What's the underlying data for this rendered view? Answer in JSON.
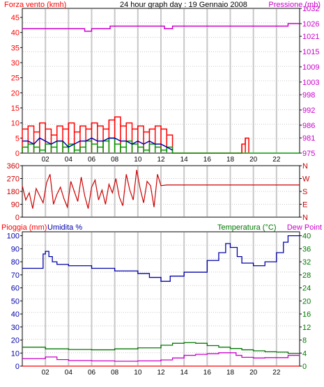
{
  "colors": {
    "wind": "#ff0000",
    "gust": "#ff0000",
    "wind_avg": "#0000aa",
    "gust_green": "#009900",
    "pressure": "#cc00cc",
    "direction": "#cc0000",
    "rain": "#ff0000",
    "humidity": "#0000aa",
    "temperature": "#007700",
    "dew_point": "#cc00cc",
    "grid": "#c8c8c8",
    "frame": "#000000"
  },
  "chart_data": [
    {
      "type": "line",
      "panel": "wind-pressure",
      "title": "24 hour graph day : 19 Gennaio 2008",
      "ylabel_left": "Forza vento (kmh)",
      "ylabel_right": "Pressione (mb)",
      "x_tick_labels": [
        "02",
        "04",
        "06",
        "08",
        "10",
        "12",
        "14",
        "16",
        "18",
        "20",
        "22"
      ],
      "y_ticks_left": [
        "0",
        "5",
        "10",
        "15",
        "20",
        "25",
        "30",
        "35",
        "40",
        "45"
      ],
      "y_ticks_right": [
        "975",
        "981",
        "986",
        "992",
        "998",
        "1003",
        "1009",
        "1015",
        "1021",
        "1026",
        "1032"
      ],
      "ylim_left": [
        0,
        48
      ],
      "ylim_right": [
        975,
        1032
      ],
      "xlim": [
        0,
        24
      ],
      "grid": true,
      "series": [
        {
          "key": "gust_red",
          "x": [
            0.0,
            0.5,
            1.0,
            1.5,
            2.0,
            2.5,
            3.0,
            3.5,
            4.0,
            4.5,
            5.0,
            5.5,
            6.0,
            6.5,
            7.0,
            7.5,
            8.0,
            8.5,
            9.0,
            9.5,
            10.0,
            10.5,
            11.0,
            11.5,
            12.0,
            12.5,
            13.0,
            18.7,
            19.0,
            19.3,
            19.6
          ],
          "y": [
            8,
            9,
            7,
            10,
            8,
            6,
            9,
            8,
            10,
            7,
            9,
            8,
            10,
            9,
            8,
            11,
            12,
            9,
            10,
            8,
            9,
            7,
            8,
            9,
            8,
            6,
            0,
            0,
            3,
            5,
            3
          ]
        },
        {
          "key": "wind_avg_blue",
          "x": [
            0.0,
            0.5,
            1.0,
            1.5,
            2.0,
            2.5,
            3.0,
            3.5,
            4.0,
            4.5,
            5.0,
            5.5,
            6.0,
            6.5,
            7.0,
            7.5,
            8.0,
            8.5,
            9.0,
            9.5,
            10.0,
            10.5,
            11.0,
            11.5,
            12.0,
            12.5,
            13.0
          ],
          "y": [
            4,
            4,
            3,
            5,
            4,
            3,
            4,
            4,
            2,
            3,
            4,
            4,
            5,
            4,
            4,
            5,
            5,
            4,
            4,
            3,
            4,
            3,
            4,
            3,
            3,
            2,
            1
          ]
        },
        {
          "key": "gust_green",
          "x": [
            0.0,
            0.5,
            1.0,
            1.5,
            2.0,
            2.5,
            3.0,
            3.5,
            4.0,
            4.5,
            5.0,
            5.5,
            6.0,
            6.5,
            7.0,
            7.5,
            8.0,
            8.5,
            9.0,
            9.5,
            10.0,
            10.5,
            11.0,
            11.5,
            12.0,
            12.5,
            13.0,
            24.0
          ],
          "y": [
            2,
            3,
            2,
            1,
            3,
            2,
            4,
            2,
            3,
            1,
            2,
            4,
            3,
            2,
            4,
            5,
            3,
            2,
            4,
            3,
            2,
            1,
            3,
            2,
            1,
            2,
            0,
            0
          ]
        },
        {
          "key": "pressure",
          "x": [
            0.0,
            5.0,
            5.4,
            6.0,
            7.0,
            7.6,
            8.0,
            9.0,
            11.0,
            12.0,
            12.3,
            13.0,
            15.0,
            18.0,
            19.0,
            22.0,
            23.0,
            24.0
          ],
          "y": [
            1024,
            1024,
            1023,
            1024,
            1024,
            1025,
            1025,
            1025,
            1025,
            1025,
            1024,
            1025,
            1025,
            1025,
            1025,
            1025,
            1026,
            1026
          ]
        }
      ]
    },
    {
      "type": "line",
      "panel": "wind-direction",
      "y_ticks_left": [
        "0",
        "90",
        "180",
        "270",
        "360"
      ],
      "y_ticks_right": [
        "N",
        "E",
        "S",
        "W",
        "N"
      ],
      "y_tick_values_right": [
        0,
        90,
        180,
        270,
        360
      ],
      "ylim": [
        0,
        360
      ],
      "xlim": [
        0,
        24
      ],
      "grid": true,
      "series": [
        {
          "key": "direction",
          "x": [
            0.0,
            0.3,
            0.6,
            0.9,
            1.2,
            1.5,
            1.8,
            2.1,
            2.4,
            2.7,
            3.0,
            3.3,
            3.6,
            3.9,
            4.2,
            4.5,
            4.8,
            5.1,
            5.4,
            5.7,
            6.0,
            6.3,
            6.6,
            6.9,
            7.2,
            7.5,
            7.8,
            8.1,
            8.4,
            8.7,
            9.0,
            9.3,
            9.6,
            9.9,
            10.2,
            10.5,
            10.8,
            11.1,
            11.4,
            11.7,
            12.0,
            12.5,
            24.0
          ],
          "y": [
            220,
            120,
            170,
            60,
            200,
            150,
            100,
            240,
            300,
            90,
            160,
            210,
            130,
            70,
            250,
            180,
            110,
            280,
            150,
            60,
            210,
            260,
            120,
            190,
            90,
            230,
            170,
            270,
            140,
            80,
            300,
            190,
            120,
            330,
            200,
            100,
            250,
            220,
            70,
            300,
            220,
            225,
            225
          ]
        }
      ]
    },
    {
      "type": "line",
      "panel": "rain-humidity-temperature",
      "ylabel_left_rain": "Pioggia (mm)",
      "ylabel_left_humidity": "Umidita %",
      "ylabel_right_temp": "Temperatura (°C)",
      "ylabel_right_dew": "Dew Point",
      "y_ticks_left": [
        "0",
        "10",
        "20",
        "30",
        "40",
        "50",
        "60",
        "70",
        "80",
        "90",
        "100"
      ],
      "y_ticks_right": [
        "0",
        "4",
        "8",
        "12",
        "16",
        "20",
        "24",
        "28",
        "32",
        "36",
        "40"
      ],
      "ylim_left": [
        0,
        103
      ],
      "ylim_right": [
        0,
        41.2
      ],
      "xlim": [
        0,
        24
      ],
      "grid": true,
      "series": [
        {
          "key": "humidity",
          "x": [
            0.0,
            1.5,
            1.8,
            2.0,
            2.3,
            2.6,
            3.0,
            4.0,
            6.0,
            8.0,
            10.0,
            11.0,
            12.0,
            12.8,
            14.0,
            16.0,
            17.0,
            17.6,
            18.0,
            18.6,
            19.0,
            20.0,
            21.0,
            22.0,
            22.6,
            23.0,
            24.0
          ],
          "y": [
            75,
            75,
            86,
            88,
            84,
            80,
            78,
            77,
            75,
            73,
            71,
            68,
            65,
            69,
            72,
            81,
            87,
            94,
            91,
            84,
            79,
            77,
            80,
            87,
            95,
            100,
            100
          ]
        },
        {
          "key": "temperature",
          "x": [
            0.0,
            1.0,
            2.0,
            4.0,
            6.0,
            8.0,
            10.0,
            12.0,
            13.0,
            14.0,
            15.0,
            16.0,
            17.0,
            18.0,
            19.0,
            20.0,
            21.0,
            22.0,
            23.0,
            24.0
          ],
          "y": [
            5.8,
            5.8,
            5.3,
            5.1,
            5.0,
            5.3,
            5.6,
            6.4,
            7.0,
            7.2,
            7.0,
            6.3,
            5.8,
            5.4,
            5.0,
            4.7,
            4.4,
            4.3,
            3.9,
            3.7
          ]
        },
        {
          "key": "dew_point",
          "x": [
            0.0,
            1.0,
            2.0,
            3.0,
            4.0,
            6.0,
            8.0,
            10.0,
            12.0,
            13.0,
            14.0,
            15.0,
            16.0,
            17.0,
            18.0,
            18.5,
            19.0,
            20.0,
            21.0,
            22.0,
            23.0,
            24.0
          ],
          "y": [
            2.3,
            2.3,
            2.8,
            2.0,
            1.7,
            1.6,
            1.5,
            1.6,
            1.9,
            2.5,
            3.3,
            3.6,
            3.8,
            4.1,
            4.1,
            3.3,
            2.7,
            2.5,
            2.6,
            2.6,
            3.3,
            3.7
          ]
        },
        {
          "key": "rain",
          "x": [
            0.0,
            24.0
          ],
          "y": [
            0,
            0
          ]
        }
      ]
    }
  ]
}
